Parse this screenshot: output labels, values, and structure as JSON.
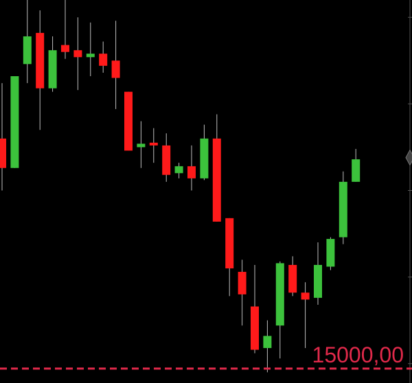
{
  "chart_data": {
    "type": "candlestick",
    "price_line": {
      "value": 15000,
      "label": "15000,00",
      "color": "#e0294a",
      "style": "dashed"
    },
    "current_price_marker": {
      "shape": "diamond",
      "color": "#444444"
    },
    "colors": {
      "background": "#000000",
      "bullish": "#3cc23c",
      "bearish": "#ff1a1a",
      "wick": "#bfbfbf",
      "axis": "#555555"
    },
    "ylim": [
      14950,
      16050
    ],
    "candles": [
      {
        "open": 15650,
        "close": 15565,
        "high": 15810,
        "low": 15500
      },
      {
        "open": 15565,
        "close": 15830,
        "high": 15830,
        "low": 15565
      },
      {
        "open": 15865,
        "close": 15945,
        "high": 16050,
        "low": 15810
      },
      {
        "open": 15955,
        "close": 15795,
        "high": 16020,
        "low": 15675
      },
      {
        "open": 15795,
        "close": 15905,
        "high": 15945,
        "low": 15785
      },
      {
        "open": 15920,
        "close": 15900,
        "high": 16060,
        "low": 15880
      },
      {
        "open": 15905,
        "close": 15885,
        "high": 16000,
        "low": 15790
      },
      {
        "open": 15885,
        "close": 15895,
        "high": 15985,
        "low": 15830
      },
      {
        "open": 15895,
        "close": 15860,
        "high": 15930,
        "low": 15840
      },
      {
        "open": 15875,
        "close": 15825,
        "high": 15990,
        "low": 15735
      },
      {
        "open": 15785,
        "close": 15615,
        "high": 15785,
        "low": 15615
      },
      {
        "open": 15625,
        "close": 15635,
        "high": 15700,
        "low": 15565
      },
      {
        "open": 15638,
        "close": 15630,
        "high": 15680,
        "low": 15580
      },
      {
        "open": 15630,
        "close": 15545,
        "high": 15665,
        "low": 15525
      },
      {
        "open": 15550,
        "close": 15570,
        "high": 15580,
        "low": 15535
      },
      {
        "open": 15570,
        "close": 15535,
        "high": 15630,
        "low": 15500
      },
      {
        "open": 15535,
        "close": 15650,
        "high": 15690,
        "low": 15530
      },
      {
        "open": 15650,
        "close": 15410,
        "high": 15720,
        "low": 15410
      },
      {
        "open": 15420,
        "close": 15275,
        "high": 15420,
        "low": 15195
      },
      {
        "open": 15265,
        "close": 15200,
        "high": 15300,
        "low": 15110
      },
      {
        "open": 15165,
        "close": 15040,
        "high": 15285,
        "low": 15030
      },
      {
        "open": 15045,
        "close": 15080,
        "high": 15125,
        "low": 14975
      },
      {
        "open": 15110,
        "close": 15290,
        "high": 15295,
        "low": 15015
      },
      {
        "open": 15285,
        "close": 15205,
        "high": 15310,
        "low": 15195
      },
      {
        "open": 15205,
        "close": 15185,
        "high": 15235,
        "low": 15045
      },
      {
        "open": 15190,
        "close": 15285,
        "high": 15350,
        "low": 15170
      },
      {
        "open": 15280,
        "close": 15360,
        "high": 15365,
        "low": 15270
      },
      {
        "open": 15365,
        "close": 15525,
        "high": 15555,
        "low": 15345
      },
      {
        "open": 15525,
        "close": 15590,
        "high": 15620,
        "low": 15525
      }
    ]
  }
}
